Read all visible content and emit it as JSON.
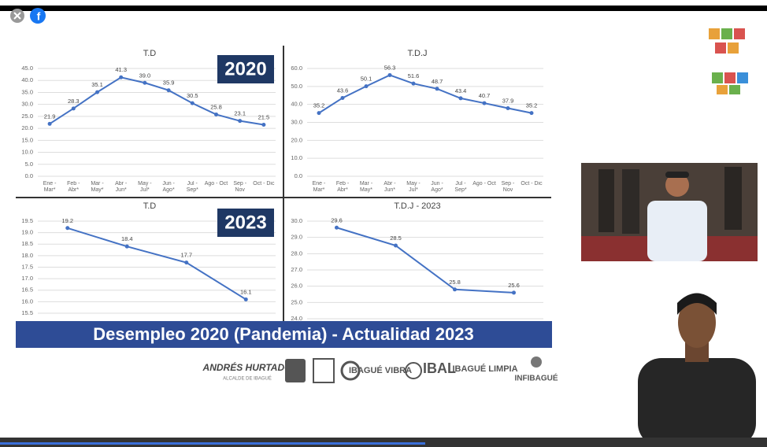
{
  "chart_data": [
    {
      "type": "line",
      "title": "T.D",
      "badge": "2020",
      "categories": [
        "Ene - Mar*",
        "Feb - Abr*",
        "Mar - May*",
        "Abr - Jun*",
        "May - Jul*",
        "Jun - Ago*",
        "Jul - Sep*",
        "Ago - Oct",
        "Sep - Nov",
        "Oct - Dic"
      ],
      "values": [
        21.9,
        28.3,
        35.1,
        41.3,
        39.0,
        35.9,
        30.5,
        25.8,
        23.1,
        21.5
      ],
      "value_labels": [
        "21.9",
        "28.3",
        "35.1",
        "41.3",
        "39.0",
        "35.9",
        "30.5",
        "25.8",
        "23.1",
        "21.5"
      ],
      "color": "#4472c4",
      "ylim": [
        0,
        45
      ],
      "yticks": [
        {
          "value": 0,
          "label": "0.0"
        },
        {
          "value": 5,
          "label": "5.0"
        },
        {
          "value": 10,
          "label": "10.0"
        },
        {
          "value": 15,
          "label": "15.0"
        },
        {
          "value": 20,
          "label": "20.0"
        },
        {
          "value": 25,
          "label": "25.0"
        },
        {
          "value": 30,
          "label": "30.0"
        },
        {
          "value": 35,
          "label": "35.0"
        },
        {
          "value": 40,
          "label": "40.0"
        },
        {
          "value": 45,
          "label": "45.0"
        }
      ],
      "grid": true
    },
    {
      "type": "line",
      "title": "T.D.J",
      "categories": [
        "Ene - Mar*",
        "Feb - Abr*",
        "Mar - May*",
        "Abr - Jun*",
        "May - Jul*",
        "Jun - Ago*",
        "Jul - Sep*",
        "Ago - Oct",
        "Sep - Nov",
        "Oct - Dic"
      ],
      "values": [
        35.2,
        43.6,
        50.1,
        56.3,
        51.6,
        48.7,
        43.4,
        40.7,
        37.9,
        35.2
      ],
      "value_labels": [
        "35.2",
        "43.6",
        "50.1",
        "56.3",
        "51.6",
        "48.7",
        "43.4",
        "40.7",
        "37.9",
        "35.2"
      ],
      "color": "#4472c4",
      "ylim": [
        0,
        60
      ],
      "yticks": [
        {
          "value": 0,
          "label": "0.0"
        },
        {
          "value": 10,
          "label": "10.0"
        },
        {
          "value": 20,
          "label": "20.0"
        },
        {
          "value": 30,
          "label": "30.0"
        },
        {
          "value": 40,
          "label": "40.0"
        },
        {
          "value": 50,
          "label": "50.0"
        },
        {
          "value": 60,
          "label": "60.0"
        }
      ],
      "grid": true
    },
    {
      "type": "line",
      "title": "T.D",
      "badge": "2023",
      "categories": [
        null,
        null,
        null,
        null
      ],
      "values": [
        19.2,
        18.4,
        17.7,
        16.1
      ],
      "value_labels": [
        "19.2",
        "18.4",
        "17.7",
        "16.1"
      ],
      "color": "#4472c4",
      "ylim": [
        15.5,
        19.5
      ],
      "yticks": [
        15.5,
        {
          "value": 16,
          "label": "16.0"
        },
        16.5,
        {
          "value": 17,
          "label": "17.0"
        },
        17.5,
        {
          "value": 18,
          "label": "18.0"
        },
        18.5,
        {
          "value": 19,
          "label": "19.0"
        },
        19.5
      ],
      "grid": true
    },
    {
      "type": "line",
      "title": "T.D.J - 2023",
      "categories": [
        null,
        null,
        null,
        null
      ],
      "values": [
        29.6,
        28.5,
        25.8,
        25.6
      ],
      "value_labels": [
        "29.6",
        "28.5",
        "25.8",
        "25.6"
      ],
      "color": "#4472c4",
      "ylim": [
        24,
        30
      ],
      "yticks": [
        {
          "value": 24,
          "label": "24.0"
        },
        {
          "value": 25,
          "label": "25.0"
        },
        {
          "value": 26,
          "label": "26.0"
        },
        {
          "value": 27,
          "label": "27.0"
        },
        {
          "value": 28,
          "label": "28.0"
        },
        {
          "value": 29,
          "label": "29.0"
        },
        {
          "value": 30,
          "label": "30.0"
        }
      ],
      "grid": true
    }
  ],
  "banner": "Desempleo 2020 (Pandemia) - Actualidad 2023",
  "logos": {
    "mayor": "ANDRÉS HURTADO",
    "mayor_sub": "ALCALDE DE IBAGUÉ",
    "vibra": "IBAGUÉ VIBRA",
    "ibal": "IBAL",
    "limpia": "IBAGUÉ LIMPIA",
    "infibague": "INFIBAGUÉ"
  }
}
